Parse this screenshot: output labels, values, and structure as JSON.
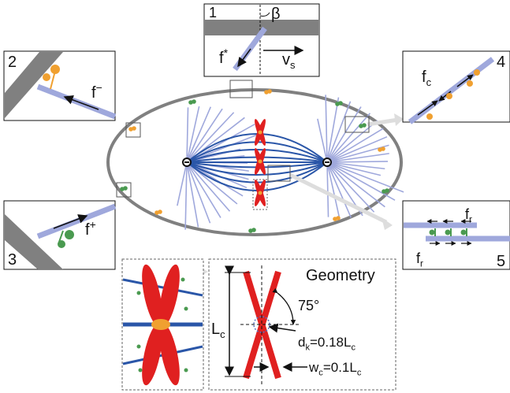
{
  "labels": {
    "p1": "1",
    "beta": "β",
    "fstar": [
      {
        "t": "f"
      },
      {
        "sup": "*"
      }
    ],
    "vs": [
      {
        "t": "v"
      },
      {
        "sub": "s"
      }
    ],
    "p2": "2",
    "fminus": [
      {
        "t": "f"
      },
      {
        "sup": "−"
      }
    ],
    "p3": "3",
    "fplus": [
      {
        "t": "f"
      },
      {
        "sup": "+"
      }
    ],
    "p4": "4",
    "fc": [
      {
        "t": "f"
      },
      {
        "sub": "c"
      }
    ],
    "p5": "5",
    "fr1": [
      {
        "t": "f"
      },
      {
        "sub": "r"
      }
    ],
    "fr2": [
      {
        "t": "f"
      },
      {
        "sub": "r"
      }
    ],
    "geometry": "Geometry",
    "angle": "75°",
    "lc": [
      {
        "t": "L"
      },
      {
        "sub": "c"
      }
    ],
    "dk": [
      {
        "t": "d"
      },
      {
        "sub": "k"
      },
      {
        "t": "=0.18L"
      },
      {
        "sub": "c"
      }
    ],
    "wc": [
      {
        "t": "w"
      },
      {
        "sub": "c"
      },
      {
        "t": "=0.1L"
      },
      {
        "sub": "c"
      }
    ]
  }
}
